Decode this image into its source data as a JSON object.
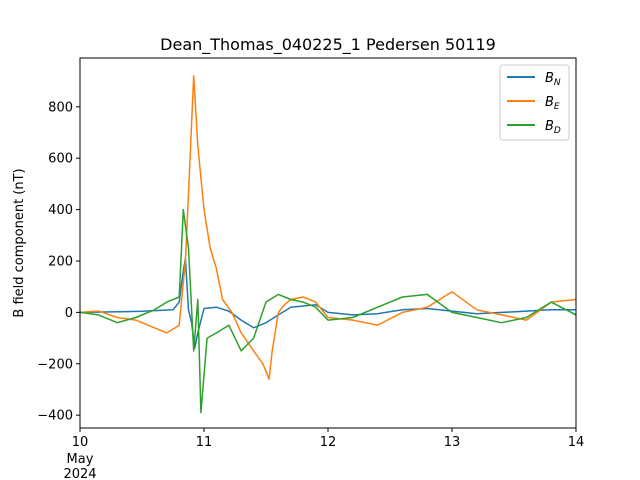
{
  "chart_data": {
    "type": "line",
    "title": "Dean_Thomas_040225_1 Pedersen 50119",
    "xlabel": "",
    "ylabel": "B field component (nT)",
    "xlim": [
      "2024-05-10",
      "2024-05-14"
    ],
    "ylim": [
      -450,
      990
    ],
    "x_ticks": [
      {
        "value": "2024-05-10",
        "label": "10",
        "sublabels": [
          "May",
          "2024"
        ]
      },
      {
        "value": "2024-05-11",
        "label": "11",
        "sublabels": []
      },
      {
        "value": "2024-05-12",
        "label": "12",
        "sublabels": []
      },
      {
        "value": "2024-05-13",
        "label": "13",
        "sublabels": []
      },
      {
        "value": "2024-05-14",
        "label": "14",
        "sublabels": []
      }
    ],
    "y_ticks": [
      {
        "value": -400,
        "label": "−400"
      },
      {
        "value": -200,
        "label": "−200"
      },
      {
        "value": 0,
        "label": "0"
      },
      {
        "value": 200,
        "label": "200"
      },
      {
        "value": 400,
        "label": "400"
      },
      {
        "value": 600,
        "label": "600"
      },
      {
        "value": 800,
        "label": "800"
      }
    ],
    "grid": false,
    "legend_position": "top-right",
    "series": [
      {
        "name": "B_N",
        "legend_base": "B",
        "legend_sub": "N",
        "color": "#1f77b4",
        "x": [
          "2024-05-10 00:00",
          "2024-05-10 06:00",
          "2024-05-10 12:00",
          "2024-05-10 18:00",
          "2024-05-10 19:12",
          "2024-05-10 19:55",
          "2024-05-10 20:24",
          "2024-05-10 21:00",
          "2024-05-10 21:36",
          "2024-05-10 22:12",
          "2024-05-10 22:48",
          "2024-05-11 00:00",
          "2024-05-11 02:24",
          "2024-05-11 04:48",
          "2024-05-11 07:12",
          "2024-05-11 09:36",
          "2024-05-11 12:00",
          "2024-05-11 14:24",
          "2024-05-11 16:48",
          "2024-05-11 19:12",
          "2024-05-11 21:36",
          "2024-05-12 00:00",
          "2024-05-12 04:48",
          "2024-05-12 09:36",
          "2024-05-12 14:24",
          "2024-05-12 19:12",
          "2024-05-13 00:00",
          "2024-05-13 04:48",
          "2024-05-13 09:36",
          "2024-05-13 14:24",
          "2024-05-13 19:12",
          "2024-05-14 00:00"
        ],
        "values": [
          0,
          2,
          4,
          10,
          40,
          150,
          210,
          10,
          -40,
          -140,
          -80,
          15,
          20,
          5,
          -30,
          -60,
          -40,
          -10,
          20,
          25,
          30,
          0,
          -10,
          -5,
          10,
          15,
          5,
          -5,
          0,
          5,
          10,
          10
        ]
      },
      {
        "name": "B_E",
        "legend_base": "B",
        "legend_sub": "E",
        "color": "#ff7f0e",
        "x": [
          "2024-05-10 00:00",
          "2024-05-10 03:36",
          "2024-05-10 07:12",
          "2024-05-10 10:48",
          "2024-05-10 14:24",
          "2024-05-10 16:48",
          "2024-05-10 19:12",
          "2024-05-10 20:24",
          "2024-05-10 21:12",
          "2024-05-10 22:00",
          "2024-05-10 22:48",
          "2024-05-11 00:00",
          "2024-05-11 01:12",
          "2024-05-11 02:24",
          "2024-05-11 03:36",
          "2024-05-11 05:24",
          "2024-05-11 07:12",
          "2024-05-11 09:36",
          "2024-05-11 11:24",
          "2024-05-11 12:36",
          "2024-05-11 13:12",
          "2024-05-11 14:24",
          "2024-05-11 15:36",
          "2024-05-11 16:48",
          "2024-05-11 19:12",
          "2024-05-11 21:36",
          "2024-05-12 00:00",
          "2024-05-12 04:48",
          "2024-05-12 09:36",
          "2024-05-12 14:24",
          "2024-05-12 19:12",
          "2024-05-13 00:00",
          "2024-05-13 04:48",
          "2024-05-13 09:36",
          "2024-05-13 14:24",
          "2024-05-13 19:12",
          "2024-05-14 00:00"
        ],
        "values": [
          0,
          5,
          -20,
          -30,
          -60,
          -80,
          -50,
          200,
          550,
          920,
          650,
          400,
          250,
          170,
          50,
          0,
          -80,
          -150,
          -200,
          -260,
          -150,
          0,
          30,
          50,
          60,
          40,
          -20,
          -30,
          -50,
          0,
          20,
          80,
          10,
          -10,
          -30,
          40,
          50
        ]
      },
      {
        "name": "B_D",
        "legend_base": "B",
        "legend_sub": "D",
        "color": "#2ca02c",
        "x": [
          "2024-05-10 00:00",
          "2024-05-10 03:36",
          "2024-05-10 07:12",
          "2024-05-10 10:48",
          "2024-05-10 14:24",
          "2024-05-10 16:48",
          "2024-05-10 19:12",
          "2024-05-10 20:00",
          "2024-05-10 21:00",
          "2024-05-10 22:00",
          "2024-05-10 22:48",
          "2024-05-10 23:24",
          "2024-05-11 00:36",
          "2024-05-11 02:24",
          "2024-05-11 04:48",
          "2024-05-11 07:12",
          "2024-05-11 09:36",
          "2024-05-11 12:00",
          "2024-05-11 14:24",
          "2024-05-11 16:48",
          "2024-05-11 19:12",
          "2024-05-11 21:36",
          "2024-05-12 00:00",
          "2024-05-12 04:48",
          "2024-05-12 09:36",
          "2024-05-12 14:24",
          "2024-05-12 19:12",
          "2024-05-13 00:00",
          "2024-05-13 04:48",
          "2024-05-13 09:36",
          "2024-05-13 14:24",
          "2024-05-13 19:12",
          "2024-05-14 00:00"
        ],
        "values": [
          0,
          -10,
          -40,
          -20,
          10,
          40,
          60,
          400,
          250,
          -150,
          50,
          -390,
          -100,
          -80,
          -50,
          -150,
          -100,
          40,
          70,
          50,
          40,
          20,
          -30,
          -20,
          20,
          60,
          70,
          0,
          -20,
          -40,
          -20,
          40,
          -10
        ]
      }
    ]
  }
}
